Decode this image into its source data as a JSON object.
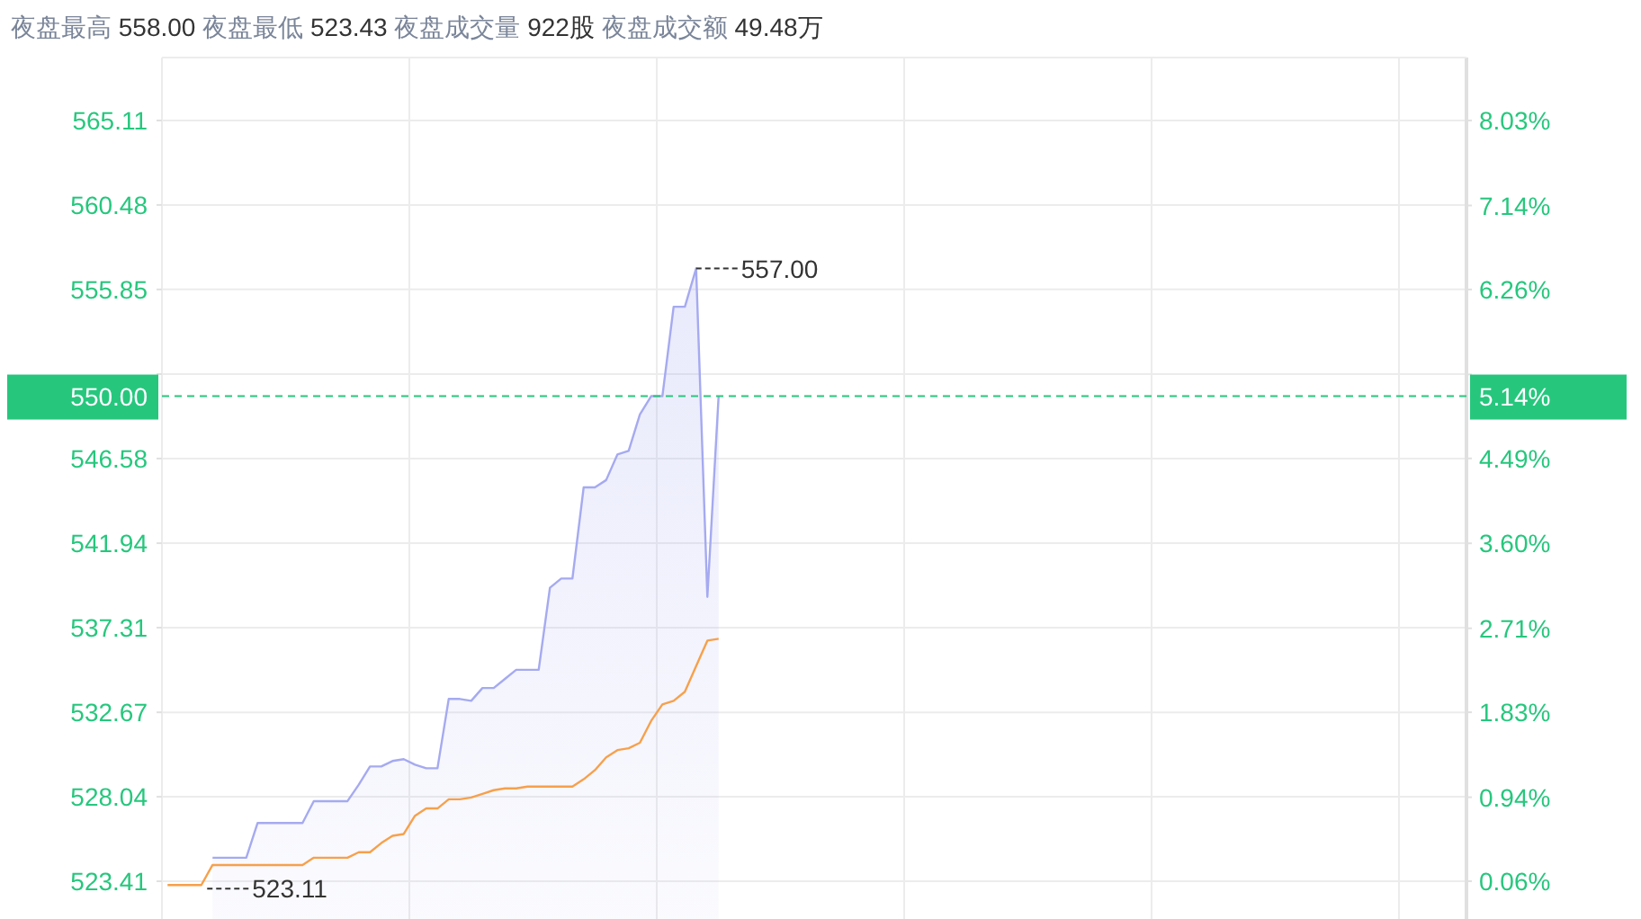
{
  "chart_data": {
    "type": "line",
    "title": "夜盘最高 558.00 夜盘最低 523.43 夜盘成交量 922股 夜盘成交额 49.48万",
    "categories": [
      null,
      null,
      null,
      null,
      null,
      null,
      null,
      null,
      null,
      null,
      null,
      null,
      null,
      null,
      null,
      null,
      null,
      null,
      null,
      null,
      null,
      null,
      null,
      null,
      null,
      null,
      null,
      null,
      null,
      null,
      null,
      null,
      null,
      null,
      null,
      null,
      null,
      null,
      null,
      null,
      null,
      null,
      null,
      null,
      null,
      null,
      null,
      null,
      null,
      null,
      null,
      null,
      null,
      null,
      null,
      null,
      null,
      null,
      null,
      null,
      null,
      null,
      null,
      null,
      null,
      null,
      null,
      null,
      null,
      null,
      null,
      null,
      null,
      null,
      null,
      null,
      null,
      null,
      null,
      null,
      null,
      null,
      null,
      null,
      null,
      null,
      null,
      null,
      null,
      null,
      null,
      null,
      null,
      null,
      null,
      null,
      null,
      null,
      null,
      null,
      null,
      null,
      null,
      null,
      null,
      null,
      null,
      null,
      null,
      null,
      null,
      null,
      null,
      null,
      null,
      null
    ],
    "series": [
      {
        "type": "area",
        "color": "#a5aaf0",
        "values": [
          null,
          null,
          null,
          null,
          524.7,
          524.7,
          524.7,
          524.7,
          526.6,
          526.6,
          526.6,
          526.6,
          526.6,
          527.8,
          527.8,
          527.8,
          527.8,
          528.7,
          529.7,
          529.7,
          530.0,
          530.1,
          529.8,
          529.6,
          529.6,
          533.4,
          533.4,
          533.3,
          534.0,
          534.0,
          534.5,
          535.0,
          535.0,
          535.0,
          539.5,
          540.0,
          540.0,
          545.0,
          545.0,
          545.4,
          546.8,
          547.0,
          549.0,
          550.0,
          550.0,
          554.9,
          554.9,
          557.0,
          539.0,
          550.0,
          null,
          null,
          null,
          null,
          null,
          null,
          null,
          null,
          null,
          null,
          null,
          null,
          null,
          null,
          null,
          null,
          null,
          null,
          null,
          null,
          null,
          null,
          null,
          null,
          null,
          null,
          null,
          null,
          null,
          null,
          null,
          null,
          null,
          null,
          null,
          null,
          null,
          null,
          null,
          null,
          null,
          null,
          null,
          null,
          null,
          null,
          null,
          null,
          null,
          null,
          null,
          null,
          null,
          null,
          null,
          null,
          null,
          null,
          null,
          null,
          null,
          null,
          null,
          null,
          null,
          null
        ]
      },
      {
        "color": "#f7a04b",
        "values": [
          523.2,
          523.2,
          523.2,
          523.2,
          524.3,
          524.3,
          524.3,
          524.3,
          524.3,
          524.3,
          524.3,
          524.3,
          524.3,
          524.7,
          524.7,
          524.7,
          524.7,
          525.0,
          525.0,
          525.5,
          525.9,
          526.0,
          527.0,
          527.4,
          527.4,
          527.9,
          527.9,
          528.0,
          528.2,
          528.4,
          528.5,
          528.5,
          528.6,
          528.6,
          528.6,
          528.6,
          528.6,
          529.0,
          529.5,
          530.2,
          530.6,
          530.7,
          531.0,
          532.2,
          533.1,
          533.3,
          533.8,
          535.2,
          536.6,
          536.7,
          null,
          null,
          null,
          null,
          null,
          null,
          null,
          null,
          null,
          null,
          null,
          null,
          null,
          null,
          null,
          null,
          null,
          null,
          null,
          null,
          null,
          null,
          null,
          null,
          null,
          null,
          null,
          null,
          null,
          null,
          null,
          null,
          null,
          null,
          null,
          null,
          null,
          null,
          null,
          null,
          null,
          null,
          null,
          null,
          null,
          null,
          null,
          null,
          null,
          null,
          null,
          null,
          null,
          null,
          null,
          null,
          null,
          null,
          null,
          null,
          null,
          null,
          null,
          null,
          null,
          null
        ]
      }
    ],
    "ylim": [
      521.34,
      568.56
    ],
    "yticks": [
      523.41,
      528.04,
      532.67,
      537.31,
      541.94,
      546.58,
      {
        "value": 551.21,
        "label": null
      },
      555.85,
      560.48,
      565.11
    ],
    "y2lim": [
      -0.336,
      8.69
    ],
    "y2ticks": [
      {
        "value": 0.06,
        "label": "0.06%"
      },
      {
        "value": 0.94,
        "label": "0.94%"
      },
      {
        "value": 1.83,
        "label": "1.83%"
      },
      {
        "value": 2.71,
        "label": "2.71%"
      },
      {
        "value": 3.6,
        "label": "3.60%"
      },
      {
        "value": 4.49,
        "label": "4.49%"
      },
      {
        "value": 5.37,
        "label": null
      },
      {
        "value": 6.26,
        "label": "6.26%"
      },
      {
        "value": 7.14,
        "label": "7.14%"
      },
      {
        "value": 8.03,
        "label": "8.03%"
      }
    ],
    "ref_lines": [
      {
        "axis": "y",
        "value": 550.0,
        "label": "550.00",
        "color": "#26c77d",
        "line_style": "dashed"
      }
    ],
    "annotations": [
      "557.00",
      "523.11",
      "5.14%"
    ],
    "grid": true
  }
}
